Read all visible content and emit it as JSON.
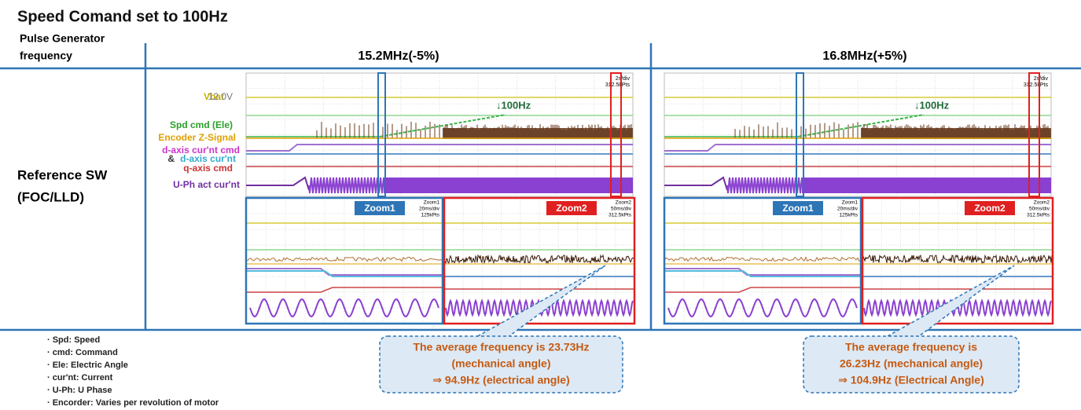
{
  "title": "Speed Comand set to 100Hz",
  "row_header": [
    "Pulse Generator",
    "frequency"
  ],
  "row_label": [
    "Reference SW",
    "(FOC/LLD)"
  ],
  "channels": {
    "vbat": "Vbat",
    "vbat_level": "12.0V",
    "spd": "Spd cmd (Ele)",
    "enc": "Encoder Z-Signal",
    "dcmd": "d-axis cur'nt cmd",
    "amp": "&",
    "dact": "d-axis cur'nt",
    "qcmd": "q-axis cmd",
    "uph": "U-Ph act cur'nt"
  },
  "panels": [
    {
      "header": "15.2MHz(-5%)",
      "marker": "↓100Hz",
      "scale": [
        "2s/div",
        "312.5kPts"
      ],
      "zoom1": "Zoom1",
      "zoom1_scale": [
        "Zoom1",
        "20ms/div",
        "125kPts"
      ],
      "zoom2": "Zoom2",
      "zoom2_scale": [
        "Zoom2",
        "50ms/div",
        "312.5kPts"
      ],
      "callout": [
        "The average frequency is 23.73Hz",
        "(mechanical angle)",
        "⇒ 94.9Hz (electrical  angle)"
      ]
    },
    {
      "header": "16.8MHz(+5%)",
      "marker": "↓100Hz",
      "scale": [
        "2s/div",
        "312.5kPts"
      ],
      "zoom1": "Zoom1",
      "zoom1_scale": [
        "Zoom1",
        "20ms/div",
        "125kPts"
      ],
      "zoom2": "Zoom2",
      "zoom2_scale": [
        "Zoom2",
        "50ms/div",
        "312.5kPts"
      ],
      "callout": [
        "The average frequency is",
        "26.23Hz (mechanical angle)",
        "⇒ 104.9Hz (Electrical Angle)"
      ]
    }
  ],
  "notes": [
    "· Spd: Speed",
    "· cmd: Command",
    "· Ele: Electric Angle",
    "· cur'nt: Current",
    "· U-Ph: U Phase",
    "· Encorder: Varies per revolution of motor"
  ]
}
